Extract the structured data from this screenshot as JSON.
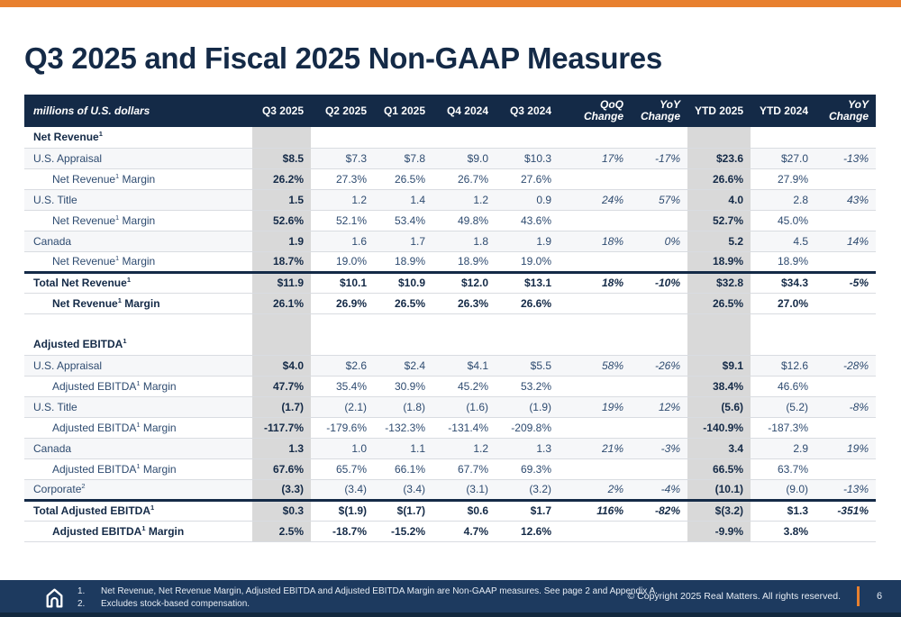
{
  "slide": {
    "title": "Q3 2025 and Fiscal 2025 Non-GAAP Measures"
  },
  "colors": {
    "accent_orange": "#E8802F",
    "header_navy": "#142A47",
    "body_text_navy": "#2E4B70",
    "highlight_column_gray": "#D9D9D9",
    "footer_navy": "#1D3A5F"
  },
  "table": {
    "unit_label": "millions of U.S. dollars",
    "columns": [
      {
        "label": "Q3 2025",
        "highlight": true
      },
      {
        "label": "Q2 2025"
      },
      {
        "label": "Q1 2025"
      },
      {
        "label": "Q4 2024"
      },
      {
        "label": "Q3 2024"
      },
      {
        "label": "QoQ Change",
        "italic": true
      },
      {
        "label": "YoY Change",
        "italic": true
      },
      {
        "label": "YTD 2025",
        "highlight": true
      },
      {
        "label": "YTD 2024"
      },
      {
        "label": "YoY Change",
        "italic": true
      }
    ],
    "rows": [
      {
        "type": "section",
        "label": "Net Revenue",
        "sup": "1"
      },
      {
        "type": "data",
        "label": "U.S. Appraisal",
        "values": [
          "$8.5",
          "$7.3",
          "$7.8",
          "$9.0",
          "$10.3",
          "17%",
          "-17%",
          "$23.6",
          "$27.0",
          "-13%"
        ]
      },
      {
        "type": "margin",
        "label": "Net Revenue",
        "sup": "1",
        "label_suffix": " Margin",
        "values": [
          "26.2%",
          "27.3%",
          "26.5%",
          "26.7%",
          "27.6%",
          "",
          "",
          "26.6%",
          "27.9%",
          ""
        ]
      },
      {
        "type": "data",
        "label": "U.S. Title",
        "values": [
          "1.5",
          "1.2",
          "1.4",
          "1.2",
          "0.9",
          "24%",
          "57%",
          "4.0",
          "2.8",
          "43%"
        ]
      },
      {
        "type": "margin",
        "label": "Net Revenue",
        "sup": "1",
        "label_suffix": " Margin",
        "values": [
          "52.6%",
          "52.1%",
          "53.4%",
          "49.8%",
          "43.6%",
          "",
          "",
          "52.7%",
          "45.0%",
          ""
        ]
      },
      {
        "type": "data",
        "label": "Canada",
        "values": [
          "1.9",
          "1.6",
          "1.7",
          "1.8",
          "1.9",
          "18%",
          "0%",
          "5.2",
          "4.5",
          "14%"
        ]
      },
      {
        "type": "margin",
        "label": "Net Revenue",
        "sup": "1",
        "label_suffix": " Margin",
        "values": [
          "18.7%",
          "19.0%",
          "18.9%",
          "18.9%",
          "19.0%",
          "",
          "",
          "18.9%",
          "18.9%",
          ""
        ]
      },
      {
        "type": "total",
        "label": "Total Net Revenue",
        "sup": "1",
        "values": [
          "$11.9",
          "$10.1",
          "$10.9",
          "$12.0",
          "$13.1",
          "18%",
          "-10%",
          "$32.8",
          "$34.3",
          "-5%"
        ]
      },
      {
        "type": "total-margin",
        "label": "Net Revenue",
        "sup": "1",
        "label_suffix": " Margin",
        "values": [
          "26.1%",
          "26.9%",
          "26.5%",
          "26.3%",
          "26.6%",
          "",
          "",
          "26.5%",
          "27.0%",
          ""
        ]
      },
      {
        "type": "blank",
        "label": ""
      },
      {
        "type": "section",
        "label": "Adjusted EBITDA",
        "sup": "1"
      },
      {
        "type": "data",
        "label": "U.S. Appraisal",
        "values": [
          "$4.0",
          "$2.6",
          "$2.4",
          "$4.1",
          "$5.5",
          "58%",
          "-26%",
          "$9.1",
          "$12.6",
          "-28%"
        ]
      },
      {
        "type": "margin",
        "label": "Adjusted EBITDA",
        "sup": "1",
        "label_suffix": " Margin",
        "values": [
          "47.7%",
          "35.4%",
          "30.9%",
          "45.2%",
          "53.2%",
          "",
          "",
          "38.4%",
          "46.6%",
          ""
        ]
      },
      {
        "type": "data",
        "label": "U.S. Title",
        "values": [
          "(1.7)",
          "(2.1)",
          "(1.8)",
          "(1.6)",
          "(1.9)",
          "19%",
          "12%",
          "(5.6)",
          "(5.2)",
          "-8%"
        ]
      },
      {
        "type": "margin",
        "label": "Adjusted EBITDA",
        "sup": "1",
        "label_suffix": " Margin",
        "values": [
          "-117.7%",
          "-179.6%",
          "-132.3%",
          "-131.4%",
          "-209.8%",
          "",
          "",
          "-140.9%",
          "-187.3%",
          ""
        ]
      },
      {
        "type": "data",
        "label": "Canada",
        "values": [
          "1.3",
          "1.0",
          "1.1",
          "1.2",
          "1.3",
          "21%",
          "-3%",
          "3.4",
          "2.9",
          "19%"
        ]
      },
      {
        "type": "margin",
        "label": "Adjusted EBITDA",
        "sup": "1",
        "label_suffix": " Margin",
        "values": [
          "67.6%",
          "65.7%",
          "66.1%",
          "67.7%",
          "69.3%",
          "",
          "",
          "66.5%",
          "63.7%",
          ""
        ]
      },
      {
        "type": "data",
        "label": "Corporate",
        "sup": "2",
        "values": [
          "(3.3)",
          "(3.4)",
          "(3.4)",
          "(3.1)",
          "(3.2)",
          "2%",
          "-4%",
          "(10.1)",
          "(9.0)",
          "-13%"
        ]
      },
      {
        "type": "total",
        "label": "Total Adjusted EBITDA",
        "sup": "1",
        "values": [
          "$0.3",
          "$(1.9)",
          "$(1.7)",
          "$0.6",
          "$1.7",
          "116%",
          "-82%",
          "$(3.2)",
          "$1.3",
          "-351%"
        ]
      },
      {
        "type": "total-margin",
        "label": "Adjusted EBITDA",
        "sup": "1",
        "label_suffix": " Margin",
        "values": [
          "2.5%",
          "-18.7%",
          "-15.2%",
          "4.7%",
          "12.6%",
          "",
          "",
          "-9.9%",
          "3.8%",
          ""
        ]
      }
    ]
  },
  "footer": {
    "footnotes": [
      {
        "num": "1.",
        "text": "Net Revenue, Net Revenue Margin, Adjusted EBITDA and Adjusted EBITDA Margin are Non-GAAP measures. See page 2 and Appendix A."
      },
      {
        "num": "2.",
        "text": "Excludes stock-based compensation."
      }
    ],
    "copyright": "© Copyright 2025 Real Matters. All rights reserved.",
    "page_number": "6"
  }
}
